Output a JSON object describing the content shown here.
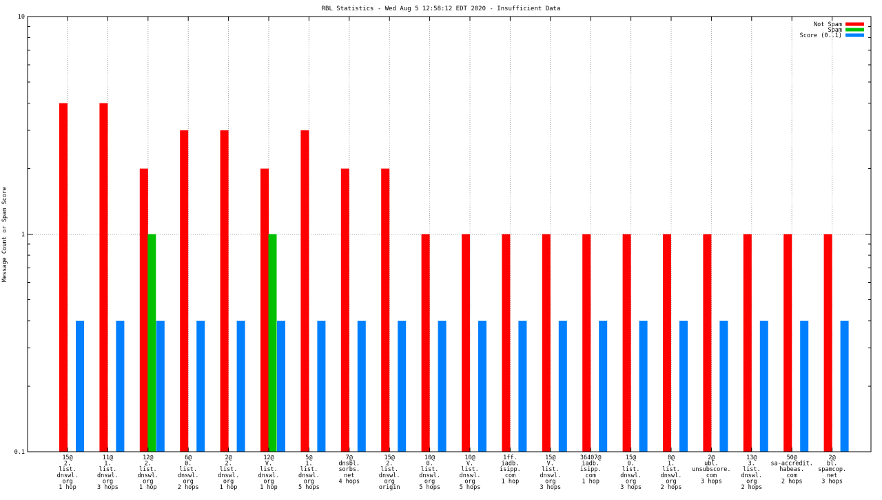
{
  "chart_data": {
    "type": "bar",
    "title": "RBL Statistics - Wed Aug  5 12:58:12 EDT 2020 - Insufficient Data",
    "ylabel": "Message Count or Spam Score",
    "xlabel": "",
    "yscale": "log",
    "ylim": [
      0.1,
      10
    ],
    "yticks": [
      "0.1",
      "1",
      "10"
    ],
    "grid": true,
    "legend_position": "top-right",
    "categories": [
      [
        "15@",
        "2.",
        "list.",
        "dnswl.",
        "org",
        "1 hop"
      ],
      [
        "11@",
        "1.",
        "list.",
        "dnswl.",
        "org",
        "3 hops"
      ],
      [
        "12@",
        "2.",
        "list.",
        "dnswl.",
        "org",
        "1 hop"
      ],
      [
        "6@",
        "0.",
        "list.",
        "dnswl.",
        "org",
        "2 hops"
      ],
      [
        "2@",
        "2.",
        "list.",
        "dnswl.",
        "org",
        "1 hop"
      ],
      [
        "12@",
        "V.",
        "list.",
        "dnswl.",
        "org",
        "1 hop"
      ],
      [
        "5@",
        "1.",
        "list.",
        "dnswl.",
        "org",
        "5 hops"
      ],
      [
        "7@",
        "dnsbl.",
        "sorbs.",
        "net",
        "4 hops"
      ],
      [
        "15@",
        "2.",
        "list.",
        "dnswl.",
        "org",
        "origin"
      ],
      [
        "10@",
        "0.",
        "list.",
        "dnswl.",
        "org",
        "5 hops"
      ],
      [
        "10@",
        "V.",
        "list.",
        "dnswl.",
        "org",
        "5 hops"
      ],
      [
        "1ff.",
        "iadb.",
        "isipp.",
        "com",
        "1 hop"
      ],
      [
        "15@",
        "V.",
        "list.",
        "dnswl.",
        "org",
        "3 hops"
      ],
      [
        "36407@",
        "iadb.",
        "isipp.",
        "com",
        "1 hop"
      ],
      [
        "15@",
        "0.",
        "list.",
        "dnswl.",
        "org",
        "3 hops"
      ],
      [
        "8@",
        "1.",
        "list.",
        "dnswl.",
        "org",
        "2 hops"
      ],
      [
        "2@",
        "ubl.",
        "unsubscore.",
        "com",
        "3 hops"
      ],
      [
        "13@",
        "3.",
        "list.",
        "dnswl.",
        "org",
        "2 hops"
      ],
      [
        "50@",
        "sa-accredit.",
        "habeas.",
        "com",
        "2 hops"
      ],
      [
        "2@",
        "bl.",
        "spamcop.",
        "net",
        "3 hops"
      ]
    ],
    "series": [
      {
        "name": "Not Spam",
        "color": "#ff0000",
        "values": [
          4,
          4,
          2,
          3,
          3,
          2,
          3,
          2,
          2,
          1,
          1,
          1,
          1,
          1,
          1,
          1,
          1,
          1,
          1,
          1
        ]
      },
      {
        "name": "Spam",
        "color": "#00c000",
        "values": [
          null,
          null,
          1,
          null,
          null,
          1,
          null,
          null,
          null,
          null,
          null,
          null,
          null,
          null,
          null,
          null,
          null,
          null,
          null,
          null
        ]
      },
      {
        "name": "Score (0..1)",
        "color": "#0080ff",
        "values": [
          0.4,
          0.4,
          0.4,
          0.4,
          0.4,
          0.4,
          0.4,
          0.4,
          0.4,
          0.4,
          0.4,
          0.4,
          0.4,
          0.4,
          0.4,
          0.4,
          0.4,
          0.4,
          0.4,
          0.4
        ]
      }
    ]
  }
}
